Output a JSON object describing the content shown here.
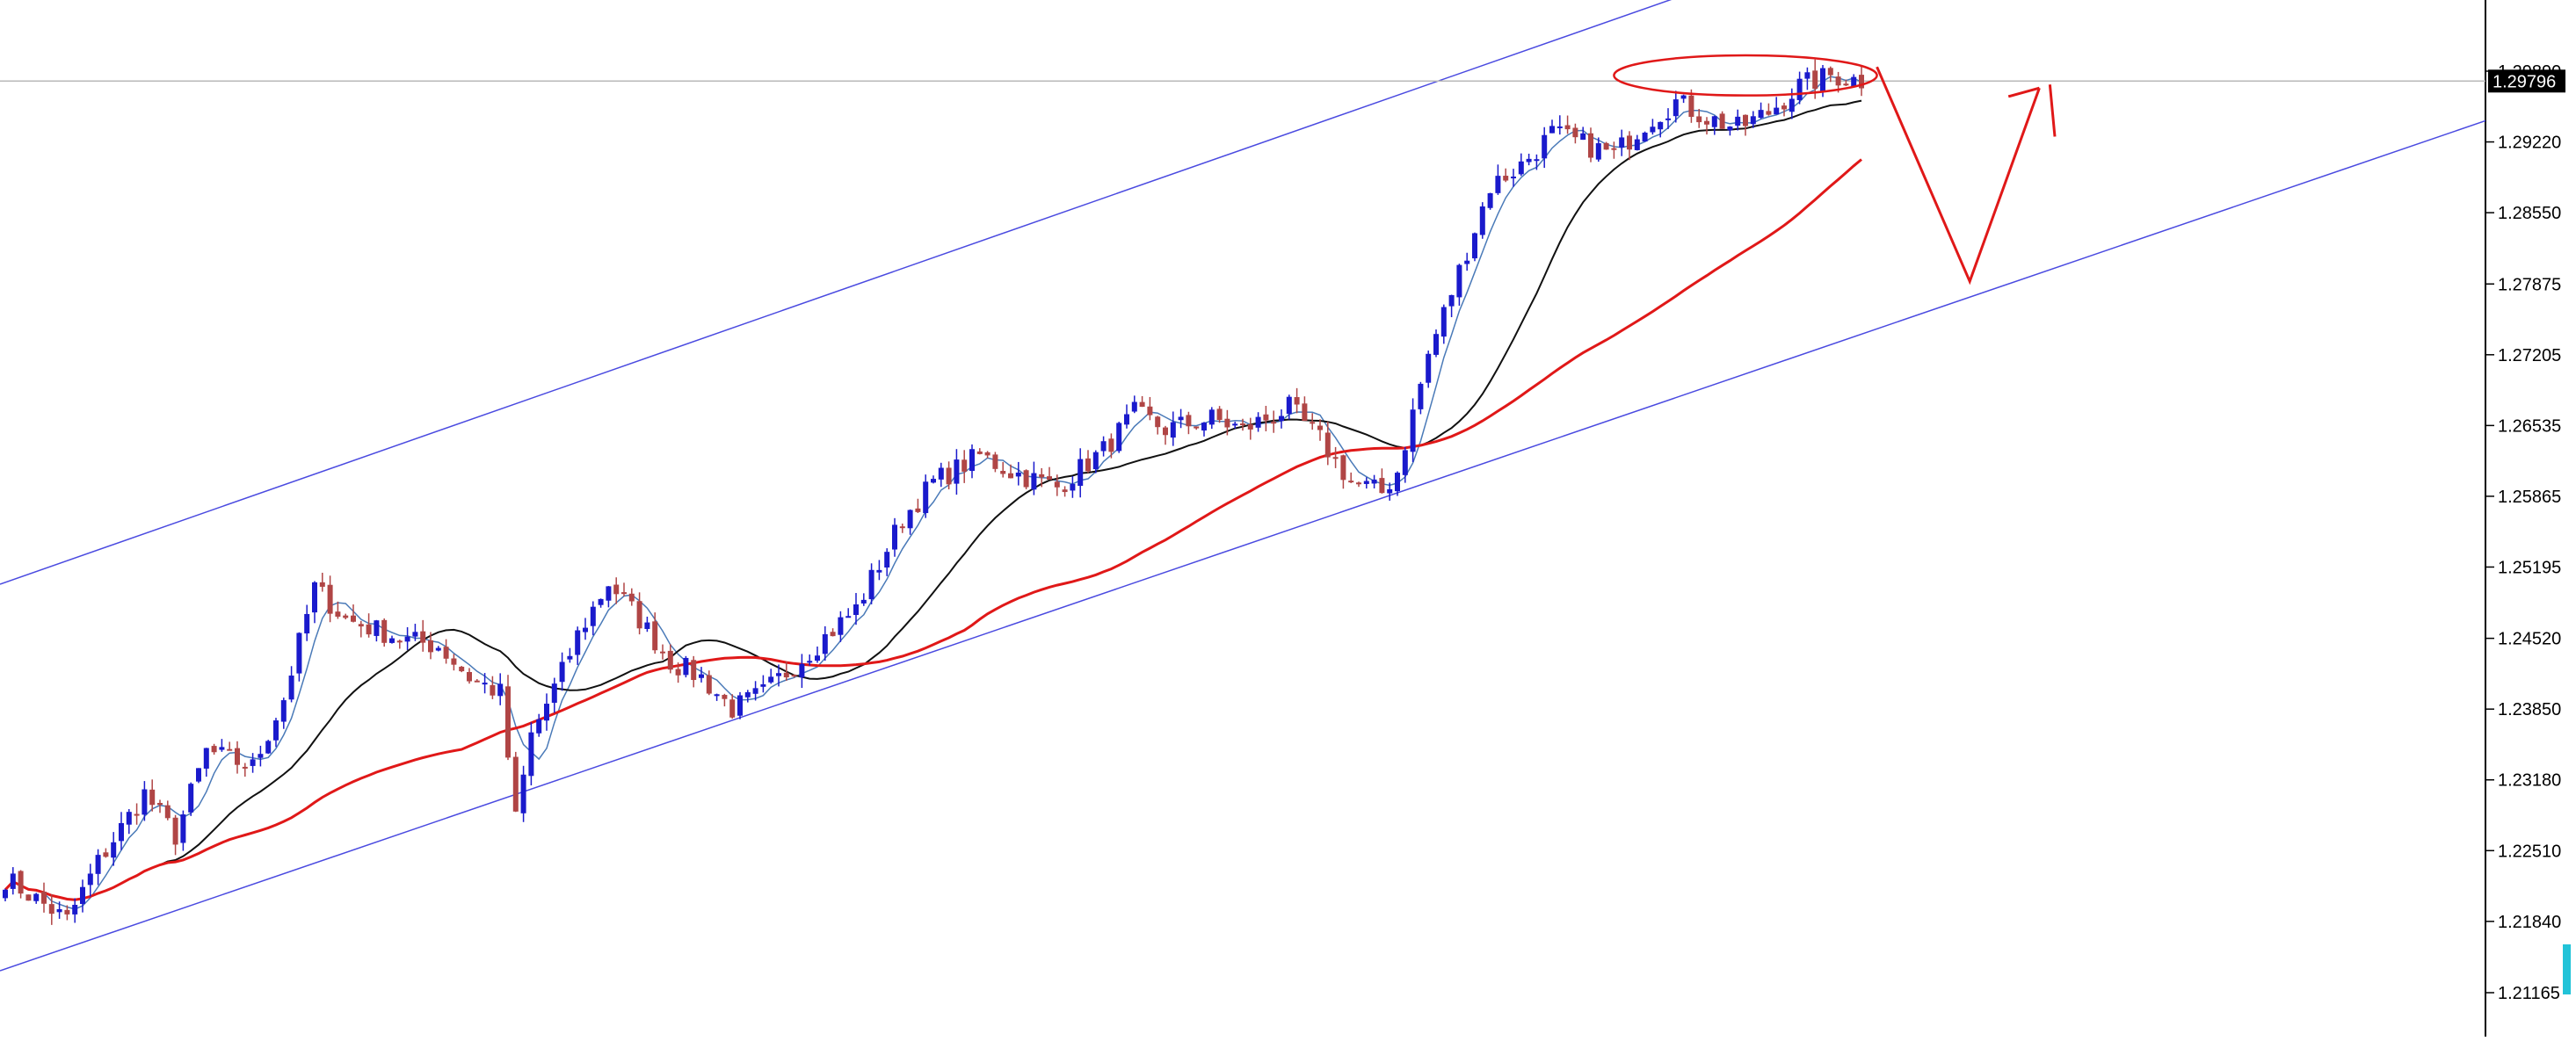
{
  "chart_data": {
    "type": "candlestick",
    "title": "",
    "xlabel": "",
    "ylabel": "",
    "ylim": [
      1.2089,
      1.3075
    ],
    "y_axis": {
      "tick_labels": [
        "1.29890",
        "1.29220",
        "1.28550",
        "1.27875",
        "1.27205",
        "1.26535",
        "1.25865",
        "1.25195",
        "1.24520",
        "1.23850",
        "1.23180",
        "1.22510",
        "1.21840",
        "1.21165"
      ],
      "tick_values": [
        1.2989,
        1.2922,
        1.2855,
        1.27875,
        1.27205,
        1.26535,
        1.25865,
        1.25195,
        1.2452,
        1.2385,
        1.2318,
        1.2251,
        1.2184,
        1.21165
      ]
    },
    "current_price": {
      "label": "1.29796",
      "value": 1.29796
    },
    "grid": false,
    "colors": {
      "bull_candle": "#1a1acc",
      "bear_candle": "#b04545",
      "ma_fast": "#4a7ab8",
      "ma_mid": "#111111",
      "ma_slow": "#e01818",
      "channel": "#4a4ae0",
      "annotation": "#e01818",
      "price_line": "#b8b8b8",
      "price_label_bg": "#000000",
      "scrollbar": "#22c3d8"
    },
    "waypoints_close": [
      [
        0,
        1.2225
      ],
      [
        8,
        1.2185
      ],
      [
        12,
        1.224
      ],
      [
        18,
        1.2305
      ],
      [
        22,
        1.2265
      ],
      [
        26,
        1.2345
      ],
      [
        32,
        1.233
      ],
      [
        36,
        1.2395
      ],
      [
        40,
        1.25
      ],
      [
        44,
        1.247
      ],
      [
        48,
        1.246
      ],
      [
        52,
        1.245
      ],
      [
        56,
        1.2445
      ],
      [
        60,
        1.2415
      ],
      [
        64,
        1.24
      ],
      [
        66,
        1.228
      ],
      [
        68,
        1.236
      ],
      [
        72,
        1.242
      ],
      [
        74,
        1.2455
      ],
      [
        78,
        1.2505
      ],
      [
        82,
        1.247
      ],
      [
        86,
        1.243
      ],
      [
        90,
        1.2415
      ],
      [
        94,
        1.2385
      ],
      [
        98,
        1.24
      ],
      [
        104,
        1.244
      ],
      [
        110,
        1.248
      ],
      [
        116,
        1.2565
      ],
      [
        120,
        1.26
      ],
      [
        126,
        1.2625
      ],
      [
        130,
        1.261
      ],
      [
        136,
        1.2595
      ],
      [
        142,
        1.263
      ],
      [
        146,
        1.2665
      ],
      [
        150,
        1.265
      ],
      [
        156,
        1.266
      ],
      [
        160,
        1.265
      ],
      [
        166,
        1.267
      ],
      [
        170,
        1.264
      ],
      [
        174,
        1.26
      ],
      [
        178,
        1.259
      ],
      [
        180,
        1.261
      ],
      [
        184,
        1.272
      ],
      [
        188,
        1.28
      ],
      [
        192,
        1.288
      ],
      [
        196,
        1.29
      ],
      [
        200,
        1.293
      ],
      [
        204,
        1.292
      ],
      [
        208,
        1.291
      ],
      [
        212,
        1.294
      ],
      [
        216,
        1.296
      ],
      [
        220,
        1.2945
      ],
      [
        224,
        1.2935
      ],
      [
        228,
        1.295
      ],
      [
        232,
        1.2975
      ],
      [
        236,
        1.2985
      ],
      [
        240,
        1.298
      ]
    ],
    "moving_averages": [
      {
        "key": "ma_fast",
        "period": 5
      },
      {
        "key": "ma_mid",
        "period": 21
      },
      {
        "key": "ma_slow",
        "period": 60
      }
    ],
    "channel": {
      "upper": [
        [
          0,
          1.2505
        ],
        [
          242,
          1.3125
        ]
      ],
      "lower": [
        [
          0,
          1.2139
        ],
        [
          242,
          1.2745
        ]
      ]
    },
    "annotations": {
      "resistance_ellipse": {
        "x_range": [
          208,
          242
        ],
        "y_range": [
          1.2966,
          1.3004
        ]
      },
      "forecast_path": [
        [
          242,
          1.2993
        ],
        [
          254,
          1.279
        ],
        [
          263,
          1.2973
        ]
      ],
      "forecast_arrow_tip": [
        [
          259,
          1.2965
        ],
        [
          263,
          1.2973
        ],
        [
          265,
          1.2927
        ]
      ]
    }
  }
}
